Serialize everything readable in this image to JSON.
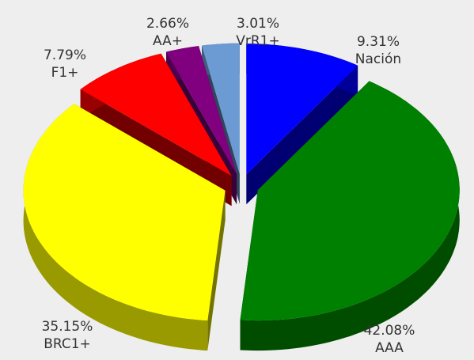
{
  "chart_data": {
    "type": "pie",
    "categories": [
      "Nación",
      "AAA",
      "BRC1+",
      "F1+",
      "AA+",
      "VrR1+"
    ],
    "values": [
      9.31,
      42.08,
      35.15,
      7.79,
      2.66,
      3.01
    ],
    "value_labels": [
      "9.31%",
      "42.08%",
      "35.15%",
      "7.79%",
      "2.66%",
      "3.01%"
    ],
    "colors": [
      "#0000ff",
      "#008000",
      "#ffff00",
      "#ff0000",
      "#800080",
      "#6b9bd2"
    ]
  }
}
